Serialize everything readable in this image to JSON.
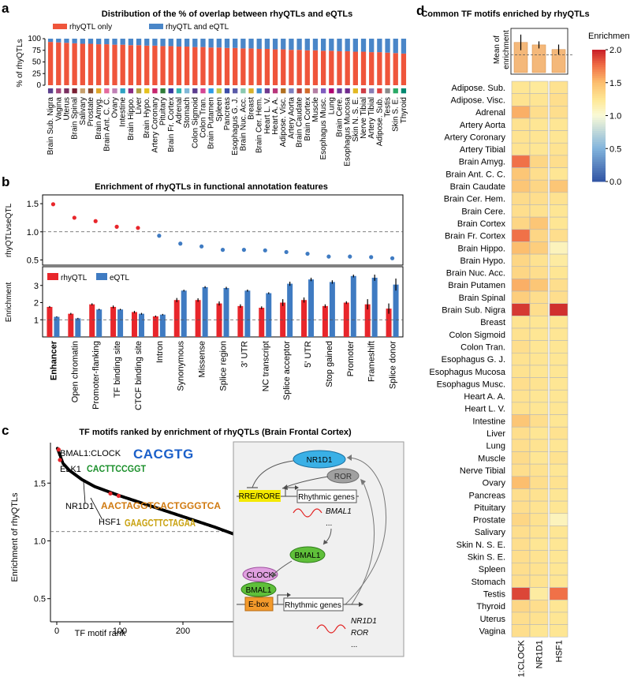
{
  "panels": {
    "a": {
      "label": "a",
      "title": "Distribution of the % of overlap between rhyQTLs and eQTLs",
      "legend": [
        "rhyQTL only",
        "rhyQTL and eQTL"
      ],
      "ylabel": "% of rhyQTLs"
    },
    "b": {
      "label": "b",
      "title": "Enrichment of rhyQTLs in functional annotation features",
      "top_ylabel": "rhyQTLvseQTL",
      "bottom_ylabel": "Enrichment",
      "legend": [
        "rhyQTL",
        "eQTL"
      ]
    },
    "c": {
      "label": "c",
      "title": "TF motifs ranked by enrichment of rhyQTLs (Brain Frontal Cortex)",
      "xlabel": "TF motif rank",
      "ylabel": "Enrichment of rhyQTLs"
    },
    "d": {
      "label": "d",
      "title": "Common TF motifs enriched by rhyQTLs",
      "bar_ylabel": [
        "Mean of",
        "enrichment"
      ],
      "colorbar_title": "Enrichment"
    }
  },
  "motif_logos": {
    "BMAL1:CLOCK": "CACGTG",
    "ELK1": "CACTTCCGGT",
    "NR1D1": "AACTAGGTCACTGGGTCA",
    "HSF1": "GAAGCTTCTAGAA"
  },
  "circuit": {
    "NR1D1": "NR1D1",
    "ROR": "ROR",
    "RRE": "RRE/RORE",
    "rhythmic": "Rhythmic genes",
    "BMAL1_out": "BMAL1",
    "ellipsis": "...",
    "BMAL1_node": "BMAL1",
    "CLOCK": "CLOCK",
    "BMAL1_bound": "BMAL1",
    "Ebox": "E-box",
    "out_NR1D1": "NR1D1",
    "out_ROR": "ROR"
  },
  "chart_data": [
    {
      "panel": "a",
      "type": "bar",
      "stacked": true,
      "title": "Distribution of the % of overlap between rhyQTLs and eQTLs",
      "ylabel": "% of rhyQTLs",
      "ylim": [
        0,
        100
      ],
      "yticks": [
        0,
        25,
        50,
        75,
        100
      ],
      "categories": [
        "Brain Sub. Nigra",
        "Vagina",
        "Uterus",
        "Brain Spinal",
        "Salivary",
        "Prostate",
        "Brain Amyg.",
        "Brain Ant. C. C.",
        "Ovary",
        "Intestine",
        "Brain Hippo.",
        "Liver",
        "Brain Hypo.",
        "Artery Coronary",
        "Pituitary",
        "Brain Fr. Cortex",
        "Adrenal",
        "Stomach",
        "Colon Sigmoid",
        "Colon Tran.",
        "Brain Putamen",
        "Spleen",
        "Pancreas",
        "Esophagus G. J.",
        "Brain Nuc. Acc.",
        "Breast",
        "Brain Cer. Hem.",
        "Heart L. V.",
        "Heart A. A.",
        "Adipose. Visc.",
        "Artery Aorta",
        "Brain Caudate",
        "Brain Cortex",
        "Muscle",
        "Esophagus Musc.",
        "Lung",
        "Brain Cere.",
        "Esophagus Mucosa",
        "Skin N. S. E.",
        "Nerve Tibial",
        "Artery Tibial",
        "Adipose. Sub.",
        "Testis",
        "Skin S. E.",
        "Thyroid"
      ],
      "series": [
        {
          "name": "rhyQTL only",
          "color": "#ef553b",
          "values": [
            93,
            92,
            91,
            90,
            89,
            89,
            88,
            88,
            87,
            87,
            86,
            86,
            85,
            85,
            84,
            84,
            83,
            83,
            82,
            82,
            81,
            81,
            80,
            80,
            79,
            79,
            78,
            78,
            77,
            77,
            76,
            76,
            75,
            75,
            74,
            74,
            73,
            73,
            72,
            72,
            71,
            71,
            70,
            69,
            68
          ]
        },
        {
          "name": "rhyQTL and eQTL",
          "color": "#4a86c8",
          "values": [
            7,
            8,
            9,
            10,
            11,
            11,
            12,
            12,
            13,
            13,
            14,
            14,
            15,
            15,
            16,
            16,
            17,
            17,
            18,
            18,
            19,
            19,
            20,
            20,
            21,
            21,
            22,
            22,
            23,
            23,
            24,
            24,
            25,
            25,
            26,
            26,
            27,
            27,
            28,
            28,
            29,
            29,
            30,
            31,
            32
          ]
        }
      ],
      "tissue_colors": [
        "#5b3f8c",
        "#a2467a",
        "#7a2f60",
        "#7a1f33",
        "#c7a06d",
        "#8a4b2e",
        "#e0a628",
        "#e46a9c",
        "#c080b5",
        "#2ea1c2",
        "#8a2a84",
        "#b0a040",
        "#e6c21d",
        "#c7266d",
        "#2f7d3a",
        "#3a3aa0",
        "#33b5b0",
        "#7fb8d8",
        "#5c3d8f",
        "#d44694",
        "#2e9be6",
        "#c3c94a",
        "#3c4ea8",
        "#5a5aa8",
        "#8ac9b0",
        "#d8b32c",
        "#3e8fd0",
        "#6f3a8f",
        "#b8367a",
        "#b17020",
        "#7e7fbf",
        "#b8433f",
        "#d36b2a",
        "#b57fa3",
        "#7f5cbf",
        "#b00070",
        "#6e3b9a",
        "#6f2a8d",
        "#e2b822",
        "#cf3e47",
        "#8a7db5",
        "#dd4444",
        "#8a8a8a",
        "#2aaa66",
        "#008870"
      ]
    },
    {
      "panel": "b-top",
      "type": "scatter",
      "ylabel": "rhyQTLvseQTL",
      "ylim": [
        0.45,
        1.6
      ],
      "yticks": [
        0.5,
        1.0,
        1.5
      ],
      "reference_line": 1.0,
      "categories": [
        "Enhancer",
        "Open chromatin",
        "Promoter-flanking",
        "TF binding site",
        "CTCF binding site",
        "Intron",
        "Synonymous",
        "Missense",
        "Splice region",
        "3' UTR",
        "NC transcript",
        "Splice acceptor",
        "5' UTR",
        "Stop gained",
        "Promoter",
        "Frameshift",
        "Splice donor"
      ],
      "values": [
        1.49,
        1.25,
        1.19,
        1.09,
        1.07,
        0.93,
        0.79,
        0.74,
        0.68,
        0.68,
        0.67,
        0.64,
        0.61,
        0.56,
        0.56,
        0.55,
        0.53
      ]
    },
    {
      "panel": "b-bottom",
      "type": "bar",
      "ylabel": "Enrichment",
      "ylim": [
        0,
        4
      ],
      "yticks": [
        1,
        2,
        3
      ],
      "reference_line": 1.0,
      "categories": [
        "Enhancer",
        "Open chromatin",
        "Promoter-flanking",
        "TF binding site",
        "CTCF binding site",
        "Intron",
        "Synonymous",
        "Missense",
        "Splice region",
        "3' UTR",
        "NC transcript",
        "Splice acceptor",
        "5' UTR",
        "Stop gained",
        "Promoter",
        "Frameshift",
        "Splice donor"
      ],
      "series": [
        {
          "name": "rhyQTL",
          "color": "#e8262b",
          "values": [
            1.75,
            1.35,
            1.9,
            1.75,
            1.45,
            1.2,
            2.15,
            2.15,
            1.95,
            1.8,
            1.7,
            2.0,
            2.15,
            1.8,
            2.0,
            1.9,
            1.65
          ],
          "errors": [
            0.05,
            0.05,
            0.06,
            0.08,
            0.07,
            0.05,
            0.12,
            0.1,
            0.12,
            0.1,
            0.08,
            0.2,
            0.15,
            0.1,
            0.08,
            0.3,
            0.3
          ]
        },
        {
          "name": "eQTL",
          "color": "#3f7bc2",
          "values": [
            1.17,
            1.08,
            1.6,
            1.6,
            1.35,
            1.3,
            2.7,
            2.9,
            2.85,
            2.7,
            2.55,
            3.1,
            3.35,
            3.2,
            3.55,
            3.45,
            3.05
          ],
          "errors": [
            0.03,
            0.03,
            0.04,
            0.04,
            0.05,
            0.04,
            0.05,
            0.06,
            0.07,
            0.06,
            0.05,
            0.12,
            0.1,
            0.1,
            0.08,
            0.18,
            0.35
          ]
        }
      ]
    },
    {
      "panel": "c",
      "type": "scatter",
      "title": "TF motifs ranked by enrichment of rhyQTLs (Brain Frontal Cortex)",
      "xlabel": "TF motif rank",
      "ylabel": "Enrichment of rhyQTLs",
      "xlim": [
        -10,
        420
      ],
      "ylim": [
        0.3,
        1.85
      ],
      "xticks": [
        0,
        100,
        200,
        300,
        400
      ],
      "yticks": [
        0.5,
        1.0,
        1.5
      ],
      "reference_line": 1.08,
      "n_points": 405,
      "curve_knots": [
        [
          1,
          1.8
        ],
        [
          10,
          1.67
        ],
        [
          20,
          1.61
        ],
        [
          40,
          1.53
        ],
        [
          60,
          1.47
        ],
        [
          80,
          1.43
        ],
        [
          100,
          1.39
        ],
        [
          150,
          1.3
        ],
        [
          200,
          1.21
        ],
        [
          250,
          1.12
        ],
        [
          300,
          1.02
        ],
        [
          350,
          0.91
        ],
        [
          380,
          0.82
        ],
        [
          395,
          0.7
        ],
        [
          400,
          0.62
        ],
        [
          403,
          0.5
        ],
        [
          405,
          0.38
        ]
      ],
      "highlighted": [
        {
          "name": "BMAL1:CLOCK",
          "rank": 3,
          "value": 1.79
        },
        {
          "name": "ELK1",
          "rank": 5,
          "value": 1.7
        },
        {
          "name": "NR1D1",
          "rank": 85,
          "value": 1.41
        },
        {
          "name": "HSF1",
          "rank": 98,
          "value": 1.39
        }
      ]
    },
    {
      "panel": "d-bar",
      "type": "bar",
      "ylabel": "Mean of enrichment",
      "ylim": [
        0.5,
        1.7
      ],
      "reference_line": 1.0,
      "categories": [
        "BMAL1:CLOCK",
        "NR1D1",
        "HSF1"
      ],
      "values": [
        1.35,
        1.28,
        1.15
      ],
      "errors": [
        0.22,
        0.1,
        0.14
      ],
      "color": "#f4b87a"
    },
    {
      "panel": "d-heatmap",
      "type": "heatmap",
      "colorbar_title": "Enrichment",
      "color_range": [
        0.0,
        2.0
      ],
      "colorbar_ticks": [
        0.0,
        0.5,
        1.0,
        1.5,
        2.0
      ],
      "columns": [
        "BMAL1:CLOCK",
        "NR1D1",
        "HSF1"
      ],
      "rows": [
        "Adipose. Sub.",
        "Adipose. Visc.",
        "Adrenal",
        "Artery Aorta",
        "Artery Coronary",
        "Artery Tibial",
        "Brain Amyg.",
        "Brain Ant. C. C.",
        "Brain Caudate",
        "Brain Cer. Hem.",
        "Brain Cere.",
        "Brain Cortex",
        "Brain Fr. Cortex",
        "Brain Hippo.",
        "Brain Hypo.",
        "Brain Nuc. Acc.",
        "Brain Putamen",
        "Brain Spinal",
        "Brain Sub. Nigra",
        "Breast",
        "Colon Sigmoid",
        "Colon Tran.",
        "Esophagus G. J.",
        "Esophagus Mucosa",
        "Esophagus Musc.",
        "Heart A. A.",
        "Heart L. V.",
        "Intestine",
        "Liver",
        "Lung",
        "Muscle",
        "Nerve Tibial",
        "Ovary",
        "Pancreas",
        "Pituitary",
        "Prostate",
        "Salivary",
        "Skin N. S. E.",
        "Skin S. E.",
        "Spleen",
        "Stomach",
        "Testis",
        "Thyroid",
        "Uterus",
        "Vagina"
      ],
      "values": [
        [
          1.25,
          1.22,
          1.28
        ],
        [
          1.27,
          1.26,
          1.3
        ],
        [
          1.55,
          1.3,
          1.3
        ],
        [
          1.28,
          1.25,
          1.25
        ],
        [
          1.27,
          1.26,
          1.25
        ],
        [
          1.27,
          1.25,
          1.27
        ],
        [
          1.75,
          1.35,
          1.3
        ],
        [
          1.45,
          1.3,
          1.25
        ],
        [
          1.45,
          1.35,
          1.45
        ],
        [
          1.32,
          1.3,
          1.28
        ],
        [
          1.3,
          1.28,
          1.25
        ],
        [
          1.35,
          1.45,
          1.25
        ],
        [
          1.75,
          1.35,
          1.3
        ],
        [
          1.5,
          1.4,
          1.1
        ],
        [
          1.35,
          1.28,
          1.2
        ],
        [
          1.35,
          1.3,
          1.25
        ],
        [
          1.55,
          1.45,
          1.3
        ],
        [
          1.4,
          1.3,
          1.3
        ],
        [
          1.92,
          1.3,
          1.95
        ],
        [
          1.27,
          1.25,
          1.25
        ],
        [
          1.28,
          1.25,
          1.25
        ],
        [
          1.3,
          1.25,
          1.25
        ],
        [
          1.28,
          1.26,
          1.25
        ],
        [
          1.28,
          1.25,
          1.25
        ],
        [
          1.3,
          1.27,
          1.25
        ],
        [
          1.28,
          1.25,
          1.25
        ],
        [
          1.28,
          1.25,
          1.25
        ],
        [
          1.45,
          1.3,
          1.25
        ],
        [
          1.3,
          1.25,
          1.28
        ],
        [
          1.3,
          1.27,
          1.25
        ],
        [
          1.32,
          1.25,
          1.28
        ],
        [
          1.3,
          1.28,
          1.25
        ],
        [
          1.5,
          1.3,
          1.28
        ],
        [
          1.3,
          1.28,
          1.25
        ],
        [
          1.3,
          1.27,
          1.25
        ],
        [
          1.35,
          1.28,
          1.1
        ],
        [
          1.3,
          1.27,
          1.25
        ],
        [
          1.3,
          1.25,
          1.25
        ],
        [
          1.3,
          1.27,
          1.25
        ],
        [
          1.3,
          1.28,
          1.25
        ],
        [
          1.3,
          1.27,
          1.25
        ],
        [
          1.88,
          1.2,
          1.75
        ],
        [
          1.35,
          1.3,
          1.25
        ],
        [
          1.3,
          1.28,
          1.25
        ],
        [
          1.3,
          1.25,
          1.25
        ]
      ]
    }
  ]
}
